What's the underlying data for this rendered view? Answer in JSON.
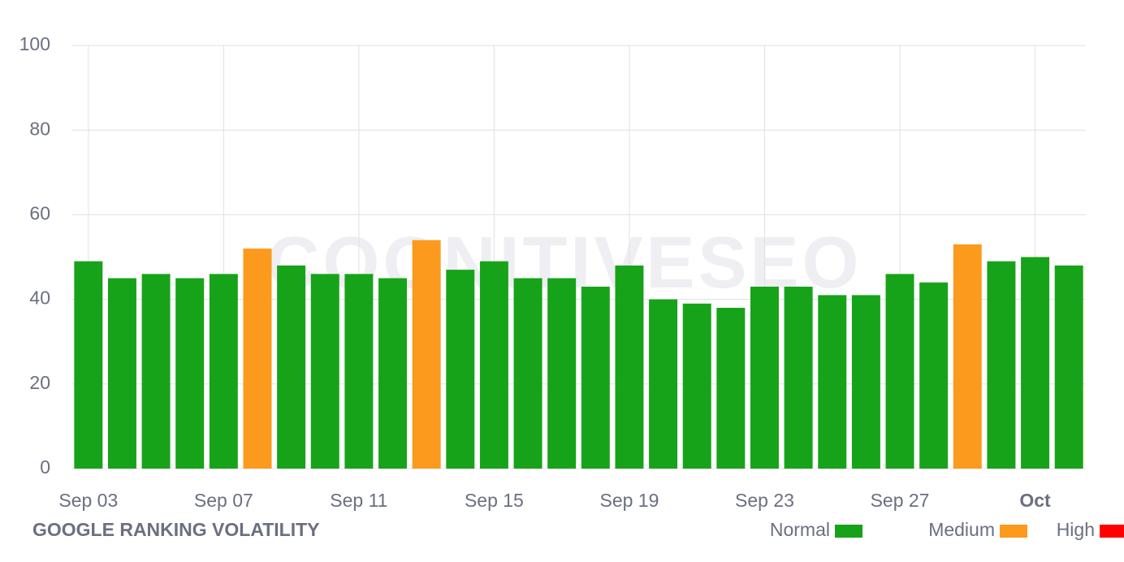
{
  "chart_data": {
    "type": "bar",
    "title": "GOOGLE RANKING VOLATILITY",
    "watermark": "COGNITIVESEO",
    "categories": [
      "Sep 03",
      null,
      null,
      null,
      "Sep 07",
      null,
      null,
      null,
      "Sep 11",
      null,
      null,
      null,
      "Sep 15",
      null,
      null,
      null,
      "Sep 19",
      null,
      null,
      null,
      "Sep 23",
      null,
      null,
      null,
      "Sep 27",
      null,
      null,
      null,
      "Oct",
      null
    ],
    "series": [
      {
        "name": "Normal",
        "color": "#17a319",
        "values": [
          49,
          45,
          46,
          45,
          46,
          null,
          48,
          46,
          46,
          45,
          null,
          47,
          49,
          45,
          45,
          43,
          48,
          40,
          39,
          38,
          43,
          43,
          41,
          41,
          46,
          44,
          null,
          49,
          50,
          48
        ]
      },
      {
        "name": "Medium",
        "color": "#fb9a1c",
        "values": [
          null,
          null,
          null,
          null,
          null,
          52,
          null,
          null,
          null,
          null,
          54,
          null,
          null,
          null,
          null,
          null,
          null,
          null,
          null,
          null,
          null,
          null,
          null,
          null,
          null,
          null,
          53,
          null,
          null,
          null
        ]
      },
      {
        "name": "High",
        "color": "#ff0000",
        "values": [
          null,
          null,
          null,
          null,
          null,
          null,
          null,
          null,
          null,
          null,
          null,
          null,
          null,
          null,
          null,
          null,
          null,
          null,
          null,
          null,
          null,
          null,
          null,
          null,
          null,
          null,
          null,
          null,
          null,
          null
        ]
      }
    ],
    "ylim": [
      0,
      100
    ],
    "yticks": [
      0,
      20,
      40,
      60,
      80,
      100
    ],
    "grid": true
  }
}
